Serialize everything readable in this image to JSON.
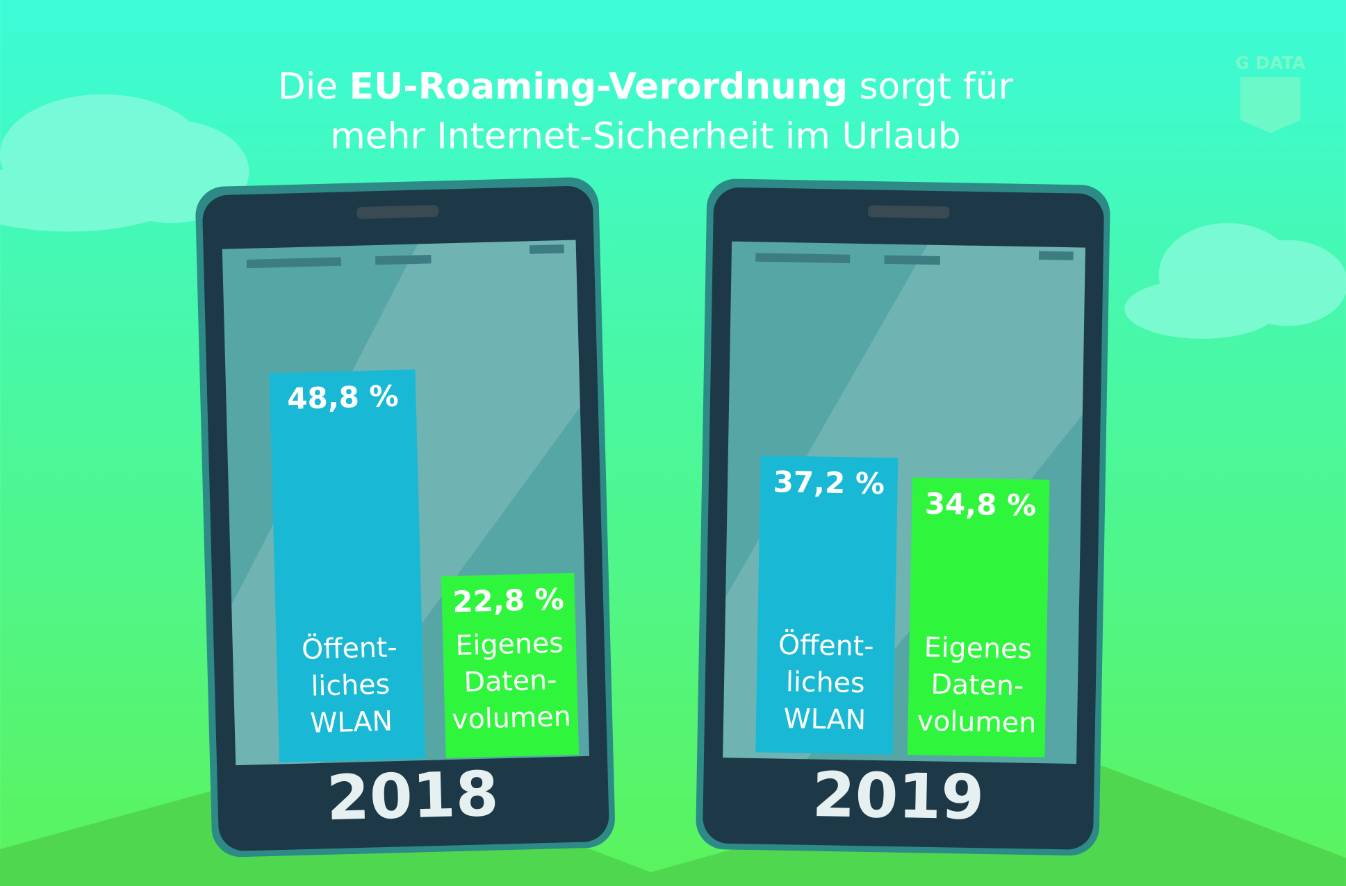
{
  "header": {
    "title_start": "Die",
    "title_bold": "EU-Roaming-Verordnung",
    "title_end": "sorgt für",
    "title_line2": "mehr Internet-Sicherheit im Urlaub",
    "logo": "G DATA"
  },
  "chart_data": [
    {
      "type": "bar",
      "title": "2018",
      "categories": [
        [
          "Öffent-",
          "liches",
          "WLAN"
        ],
        [
          "Eigenes",
          "Daten-",
          "volumen"
        ]
      ],
      "values": [
        48.8,
        22.8
      ],
      "value_labels": [
        "48,8 %",
        "22,8 %"
      ],
      "colors": [
        "#19b9d6",
        "#2ff53c"
      ]
    },
    {
      "type": "bar",
      "title": "2019",
      "categories": [
        [
          "Öffent-",
          "liches",
          "WLAN"
        ],
        [
          "Eigenes",
          "Daten-",
          "volumen"
        ]
      ],
      "values": [
        37.2,
        34.8
      ],
      "value_labels": [
        "37,2 %",
        "34,8 %"
      ],
      "colors": [
        "#19b9d6",
        "#2ff53c"
      ]
    }
  ]
}
